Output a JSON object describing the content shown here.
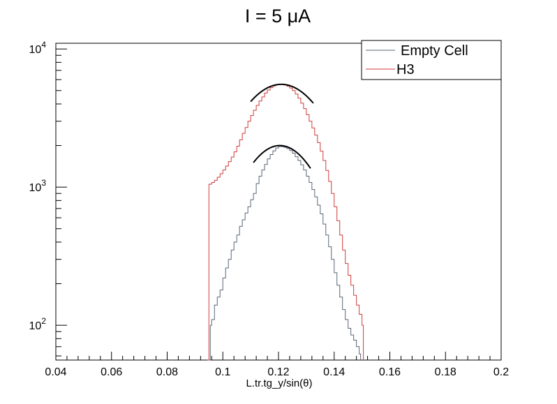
{
  "chart_data": {
    "type": "line",
    "title": "I = 5 μA",
    "xlabel": "L.tr.tg_y/sin(θ)",
    "ylabel": "",
    "xlim": [
      0.04,
      0.2
    ],
    "ylim": [
      56,
      11000
    ],
    "yscale": "log",
    "x_ticks": [
      0.04,
      0.06,
      0.08,
      0.1,
      0.12,
      0.14,
      0.16,
      0.18,
      0.2
    ],
    "x_tick_labels": [
      "0.04",
      "0.06",
      "0.08",
      "0.1",
      "0.12",
      "0.14",
      "0.16",
      "0.18",
      "0.2"
    ],
    "y_ticks": [
      {
        "base": "10",
        "exp": "2",
        "value": 100
      },
      {
        "base": "10",
        "exp": "3",
        "value": 1000
      },
      {
        "base": "10",
        "exp": "4",
        "value": 10000
      }
    ],
    "grid": false,
    "legend_position": "top-right",
    "series": [
      {
        "name": "Empty Cell",
        "color": "#5a6677",
        "style": "step",
        "x": [
          0.095,
          0.0955,
          0.096,
          0.097,
          0.098,
          0.099,
          0.1,
          0.101,
          0.102,
          0.103,
          0.104,
          0.105,
          0.106,
          0.107,
          0.108,
          0.109,
          0.11,
          0.111,
          0.112,
          0.113,
          0.114,
          0.115,
          0.116,
          0.117,
          0.118,
          0.119,
          0.12,
          0.121,
          0.122,
          0.123,
          0.124,
          0.125,
          0.126,
          0.127,
          0.128,
          0.129,
          0.13,
          0.131,
          0.132,
          0.133,
          0.134,
          0.135,
          0.136,
          0.137,
          0.138,
          0.139,
          0.14,
          0.141,
          0.142,
          0.143,
          0.144,
          0.145,
          0.146,
          0.147,
          0.148,
          0.149,
          0.1495
        ],
        "y": [
          56,
          100,
          110,
          140,
          160,
          180,
          220,
          260,
          300,
          350,
          400,
          450,
          520,
          580,
          650,
          720,
          810,
          900,
          1060,
          1200,
          1330,
          1460,
          1600,
          1720,
          1830,
          1920,
          1970,
          1960,
          1940,
          1900,
          1840,
          1760,
          1660,
          1560,
          1450,
          1330,
          1200,
          1080,
          960,
          850,
          740,
          640,
          540,
          450,
          370,
          300,
          240,
          195,
          160,
          130,
          110,
          95,
          85,
          78,
          70,
          62,
          56
        ]
      },
      {
        "name": "H3",
        "color": "#d03a3a",
        "style": "step",
        "x": [
          0.0945,
          0.095,
          0.096,
          0.097,
          0.098,
          0.099,
          0.1,
          0.101,
          0.102,
          0.103,
          0.104,
          0.105,
          0.106,
          0.107,
          0.108,
          0.109,
          0.11,
          0.111,
          0.112,
          0.113,
          0.114,
          0.115,
          0.116,
          0.117,
          0.118,
          0.119,
          0.12,
          0.121,
          0.122,
          0.123,
          0.124,
          0.125,
          0.126,
          0.127,
          0.128,
          0.129,
          0.13,
          0.131,
          0.132,
          0.133,
          0.134,
          0.135,
          0.136,
          0.137,
          0.138,
          0.139,
          0.14,
          0.141,
          0.142,
          0.143,
          0.144,
          0.145,
          0.146,
          0.147,
          0.148,
          0.149,
          0.15,
          0.1505
        ],
        "y": [
          56,
          1050,
          1080,
          1120,
          1180,
          1250,
          1330,
          1420,
          1530,
          1650,
          1800,
          1980,
          2200,
          2450,
          2700,
          3000,
          3300,
          3600,
          3900,
          4200,
          4500,
          4800,
          5050,
          5250,
          5400,
          5500,
          5550,
          5540,
          5480,
          5380,
          5220,
          5000,
          4720,
          4400,
          4050,
          3700,
          3350,
          3000,
          2680,
          2380,
          2100,
          1820,
          1560,
          1320,
          1100,
          900,
          720,
          570,
          450,
          350,
          280,
          230,
          195,
          165,
          140,
          120,
          100,
          56
        ]
      }
    ],
    "fits": [
      {
        "color": "#000000",
        "amplitude": 2000,
        "mean": 0.1205,
        "sigma": 0.0126,
        "x_range": [
          0.111,
          0.1315
        ]
      },
      {
        "color": "#000000",
        "amplitude": 5550,
        "mean": 0.121,
        "sigma": 0.0145,
        "x_range": [
          0.11,
          0.1325
        ]
      }
    ]
  }
}
